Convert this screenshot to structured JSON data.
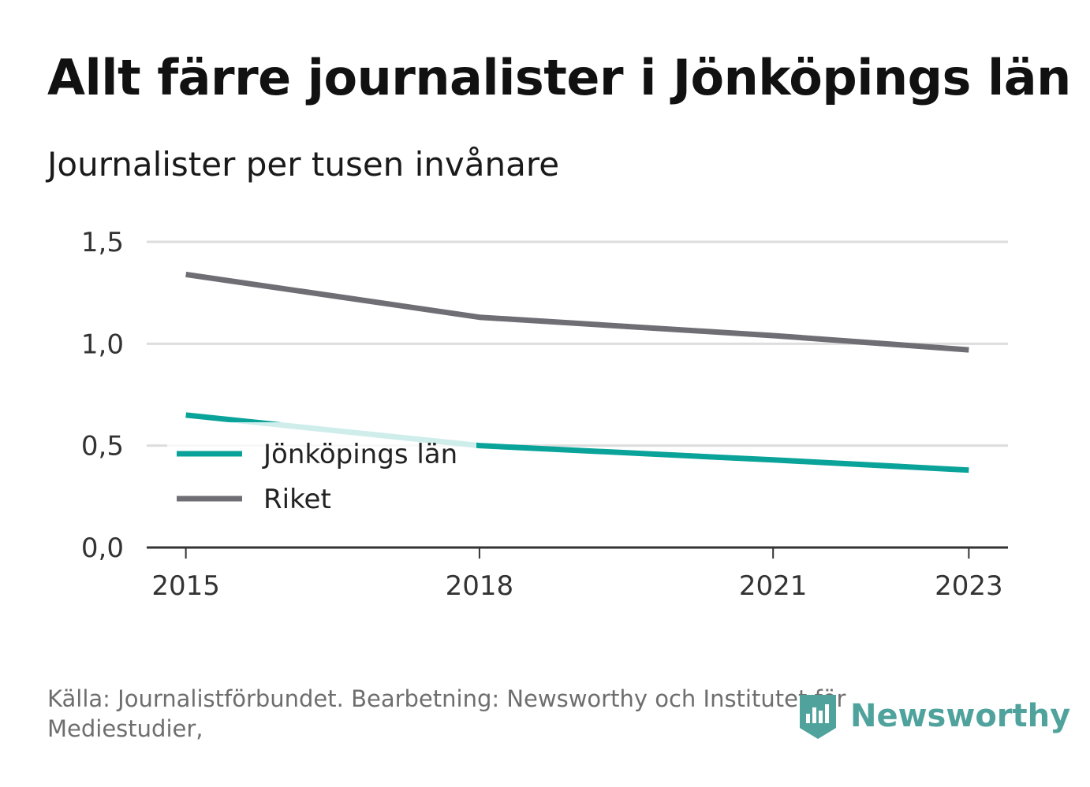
{
  "header": {
    "title": "Allt färre journalister i Jönköpings län",
    "subtitle": "Journalister per tusen invånare"
  },
  "footer": {
    "source": "Källa: Journalistförbundet. Bearbetning: Newsworthy och Institutet för Mediestudier,",
    "brand": "Newsworthy",
    "brand_icon": "newsworthy-logo-icon"
  },
  "colors": {
    "jonkoping": "#0aa39a",
    "riket": "#6f6e75",
    "grid": "#dddddd",
    "axis": "#333333",
    "brand": "#4fa39c"
  },
  "chart_data": {
    "type": "line",
    "title": "Allt färre journalister i Jönköpings län",
    "subtitle": "Journalister per tusen invånare",
    "xlabel": "",
    "ylabel": "",
    "x": [
      2015,
      2018,
      2021,
      2023
    ],
    "x_ticks": [
      "2015",
      "2018",
      "2021",
      "2023"
    ],
    "xlim": [
      2014.6,
      2023.4
    ],
    "ylim": [
      0,
      1.5
    ],
    "y_ticks": [
      "0,0",
      "0,5",
      "1,0",
      "1,5"
    ],
    "grid": true,
    "legend_position": "bottom-left",
    "series": [
      {
        "name": "Jönköpings län",
        "color": "#0aa39a",
        "values": [
          0.65,
          0.5,
          0.43,
          0.38
        ]
      },
      {
        "name": "Riket",
        "color": "#6f6e75",
        "values": [
          1.34,
          1.13,
          1.04,
          0.97
        ]
      }
    ]
  }
}
